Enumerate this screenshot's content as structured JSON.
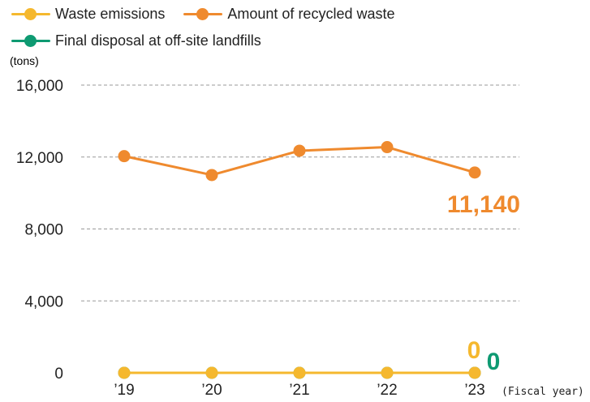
{
  "chart_data": {
    "type": "line",
    "y_unit": "(tons)",
    "x_unit": "(Fiscal year)",
    "categories": [
      "’19",
      "’20",
      "’21",
      "’22",
      "’23"
    ],
    "ylim": [
      0,
      16000
    ],
    "yticks": [
      0,
      4000,
      8000,
      12000,
      16000
    ],
    "ytick_labels": [
      "0",
      "4,000",
      "8,000",
      "12,000",
      "16,000"
    ],
    "grid": true,
    "legend_position": "top-left",
    "series": [
      {
        "name": "Waste emissions",
        "color": "#f5b82e",
        "values": [
          0,
          0,
          0,
          0,
          0
        ]
      },
      {
        "name": "Amount of recycled waste",
        "color": "#ef8a2e",
        "values": [
          12050,
          11000,
          12350,
          12550,
          11140
        ]
      },
      {
        "name": "Final disposal at off-site landfills",
        "color": "#0e9a72",
        "values": [
          0,
          0,
          0,
          0,
          0
        ]
      }
    ],
    "annotations": [
      {
        "series": 1,
        "index": 4,
        "text": "11,140"
      },
      {
        "series": 0,
        "index": 4,
        "text": "0"
      },
      {
        "series": 2,
        "index": 4,
        "text": "0"
      }
    ]
  }
}
